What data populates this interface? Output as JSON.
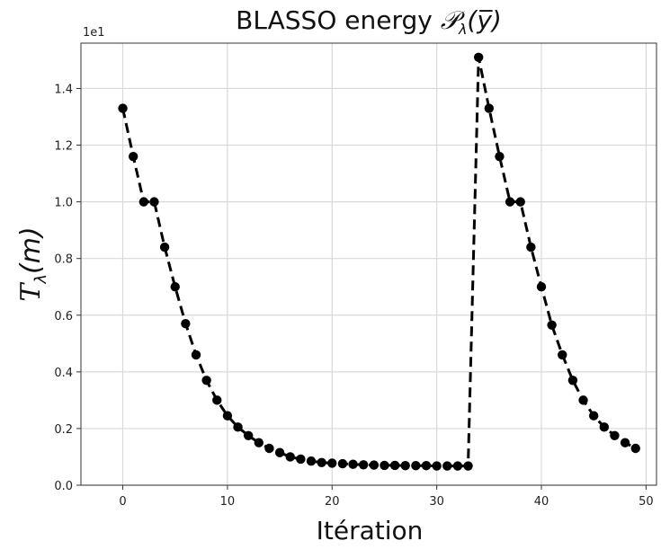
{
  "chart_data": {
    "type": "line",
    "title_text": "BLASSO energy ",
    "title_math": "𝒫",
    "title_sub": "λ",
    "title_arg": "(y̅)",
    "xlabel": "Itération",
    "ylabel_math": "T",
    "ylabel_sub": "λ",
    "ylabel_arg": "(m)",
    "offset_text": "1e1",
    "xlim": [
      -4,
      51
    ],
    "ylim": [
      0,
      1.56
    ],
    "xticks": [
      0,
      10,
      20,
      30,
      40,
      50
    ],
    "yticks": [
      0.0,
      0.2,
      0.4,
      0.6,
      0.8,
      1.0,
      1.2,
      1.4
    ],
    "xtick_labels": [
      "0",
      "10",
      "20",
      "30",
      "40",
      "50"
    ],
    "ytick_labels": [
      "0.0",
      "0.2",
      "0.4",
      "0.6",
      "0.8",
      "1.0",
      "1.2",
      "1.4"
    ],
    "grid": true,
    "line_style": "dashed",
    "marker": "circle",
    "color": "#000000",
    "series": [
      {
        "x": [
          0,
          1,
          2,
          3,
          4,
          5,
          6,
          7,
          8,
          9,
          10,
          11,
          12,
          13,
          14,
          15,
          16,
          17,
          18,
          19,
          20,
          21,
          22,
          23,
          24,
          25,
          26,
          27,
          28,
          29,
          30,
          31,
          32,
          33,
          34,
          35,
          36,
          37,
          38,
          39,
          40,
          41,
          42,
          43,
          44,
          45,
          46,
          47,
          48,
          49
        ],
        "y": [
          1.33,
          1.16,
          1.0,
          1.0,
          0.84,
          0.7,
          0.57,
          0.46,
          0.37,
          0.3,
          0.245,
          0.205,
          0.175,
          0.15,
          0.13,
          0.115,
          0.1,
          0.092,
          0.085,
          0.08,
          0.078,
          0.076,
          0.074,
          0.072,
          0.071,
          0.07,
          0.07,
          0.069,
          0.069,
          0.069,
          0.068,
          0.068,
          0.068,
          0.068,
          1.51,
          1.33,
          1.16,
          1.0,
          1.0,
          0.84,
          0.7,
          0.565,
          0.46,
          0.37,
          0.3,
          0.245,
          0.205,
          0.175,
          0.15,
          0.13
        ]
      }
    ]
  }
}
